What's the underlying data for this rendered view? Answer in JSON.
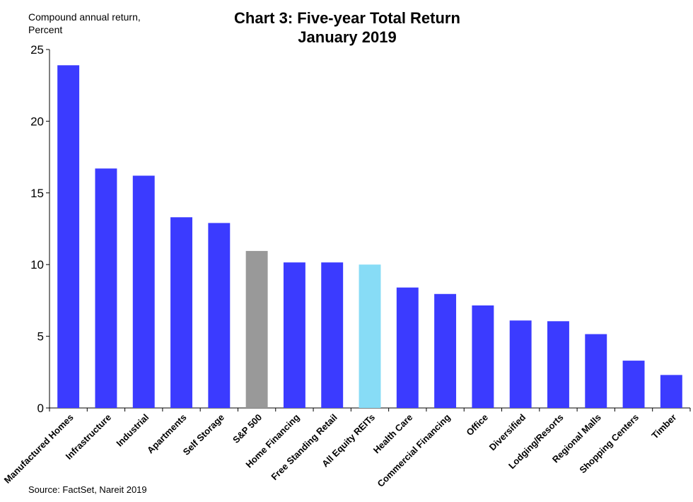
{
  "chart_data": {
    "type": "bar",
    "title": "Chart 3: Five-year Total Return",
    "subtitle": "January 2019",
    "ylabel_line1": "Compound  annual return,",
    "ylabel_line2": "Percent",
    "xlabel": "",
    "ylim": [
      0,
      25
    ],
    "yticks": [
      0,
      5,
      10,
      15,
      20,
      25
    ],
    "grid": false,
    "source": "Source: FactSet, Nareit 2019",
    "categories": [
      "Manufactured Homes",
      "Infrastructure",
      "Industrial",
      "Apartments",
      "Self Storage",
      "S&P 500",
      "Home Financing",
      "Free Standing Retail",
      "All Equity REITs",
      "Health Care",
      "Commercial Financing",
      "Office",
      "Diversified",
      "Lodging/Resorts",
      "Regional Malls",
      "Shopping Centers",
      "Timber"
    ],
    "values": [
      23.9,
      16.7,
      16.2,
      13.3,
      12.9,
      10.95,
      10.15,
      10.15,
      10.0,
      8.4,
      7.95,
      7.15,
      6.1,
      6.05,
      5.15,
      3.3,
      2.3
    ],
    "colors": [
      "#3b3bff",
      "#3b3bff",
      "#3b3bff",
      "#3b3bff",
      "#3b3bff",
      "#999999",
      "#3b3bff",
      "#3b3bff",
      "#87dcf6",
      "#3b3bff",
      "#3b3bff",
      "#3b3bff",
      "#3b3bff",
      "#3b3bff",
      "#3b3bff",
      "#3b3bff",
      "#3b3bff"
    ]
  }
}
